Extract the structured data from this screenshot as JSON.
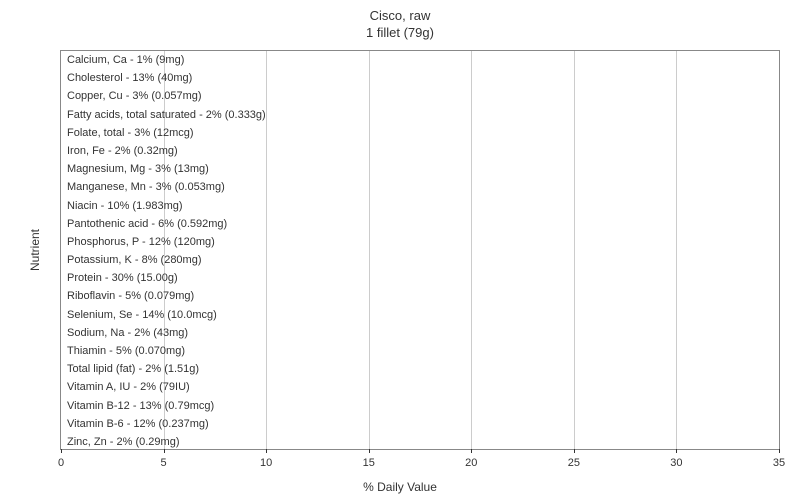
{
  "chart": {
    "type": "bar-horizontal",
    "title_line1": "Cisco, raw",
    "title_line2": "1 fillet (79g)",
    "title_fontsize": 13,
    "x_axis_label": "% Daily Value",
    "y_axis_label": "Nutrient",
    "axis_label_fontsize": 12,
    "bar_label_fontsize": 11,
    "tick_fontsize": 11,
    "xlim": [
      0,
      35
    ],
    "xtick_step": 5,
    "xticks": [
      0,
      5,
      10,
      15,
      20,
      25,
      30,
      35
    ],
    "bar_color": "#b7d4f0",
    "background_color": "#ffffff",
    "grid_color": "#cccccc",
    "border_color": "#888888",
    "text_color": "#333333",
    "nutrients": [
      {
        "name": "Calcium, Ca",
        "percent": 1,
        "amount": "9mg",
        "label": "Calcium, Ca - 1% (9mg)"
      },
      {
        "name": "Cholesterol",
        "percent": 13,
        "amount": "40mg",
        "label": "Cholesterol - 13% (40mg)"
      },
      {
        "name": "Copper, Cu",
        "percent": 3,
        "amount": "0.057mg",
        "label": "Copper, Cu - 3% (0.057mg)"
      },
      {
        "name": "Fatty acids, total saturated",
        "percent": 2,
        "amount": "0.333g",
        "label": "Fatty acids, total saturated - 2% (0.333g)"
      },
      {
        "name": "Folate, total",
        "percent": 3,
        "amount": "12mcg",
        "label": "Folate, total - 3% (12mcg)"
      },
      {
        "name": "Iron, Fe",
        "percent": 2,
        "amount": "0.32mg",
        "label": "Iron, Fe - 2% (0.32mg)"
      },
      {
        "name": "Magnesium, Mg",
        "percent": 3,
        "amount": "13mg",
        "label": "Magnesium, Mg - 3% (13mg)"
      },
      {
        "name": "Manganese, Mn",
        "percent": 3,
        "amount": "0.053mg",
        "label": "Manganese, Mn - 3% (0.053mg)"
      },
      {
        "name": "Niacin",
        "percent": 10,
        "amount": "1.983mg",
        "label": "Niacin - 10% (1.983mg)"
      },
      {
        "name": "Pantothenic acid",
        "percent": 6,
        "amount": "0.592mg",
        "label": "Pantothenic acid - 6% (0.592mg)"
      },
      {
        "name": "Phosphorus, P",
        "percent": 12,
        "amount": "120mg",
        "label": "Phosphorus, P - 12% (120mg)"
      },
      {
        "name": "Potassium, K",
        "percent": 8,
        "amount": "280mg",
        "label": "Potassium, K - 8% (280mg)"
      },
      {
        "name": "Protein",
        "percent": 30,
        "amount": "15.00g",
        "label": "Protein - 30% (15.00g)"
      },
      {
        "name": "Riboflavin",
        "percent": 5,
        "amount": "0.079mg",
        "label": "Riboflavin - 5% (0.079mg)"
      },
      {
        "name": "Selenium, Se",
        "percent": 14,
        "amount": "10.0mcg",
        "label": "Selenium, Se - 14% (10.0mcg)"
      },
      {
        "name": "Sodium, Na",
        "percent": 2,
        "amount": "43mg",
        "label": "Sodium, Na - 2% (43mg)"
      },
      {
        "name": "Thiamin",
        "percent": 5,
        "amount": "0.070mg",
        "label": "Thiamin - 5% (0.070mg)"
      },
      {
        "name": "Total lipid (fat)",
        "percent": 2,
        "amount": "1.51g",
        "label": "Total lipid (fat) - 2% (1.51g)"
      },
      {
        "name": "Vitamin A, IU",
        "percent": 2,
        "amount": "79IU",
        "label": "Vitamin A, IU - 2% (79IU)"
      },
      {
        "name": "Vitamin B-12",
        "percent": 13,
        "amount": "0.79mcg",
        "label": "Vitamin B-12 - 13% (0.79mcg)"
      },
      {
        "name": "Vitamin B-6",
        "percent": 12,
        "amount": "0.237mg",
        "label": "Vitamin B-6 - 12% (0.237mg)"
      },
      {
        "name": "Zinc, Zn",
        "percent": 2,
        "amount": "0.29mg",
        "label": "Zinc, Zn - 2% (0.29mg)"
      }
    ]
  }
}
